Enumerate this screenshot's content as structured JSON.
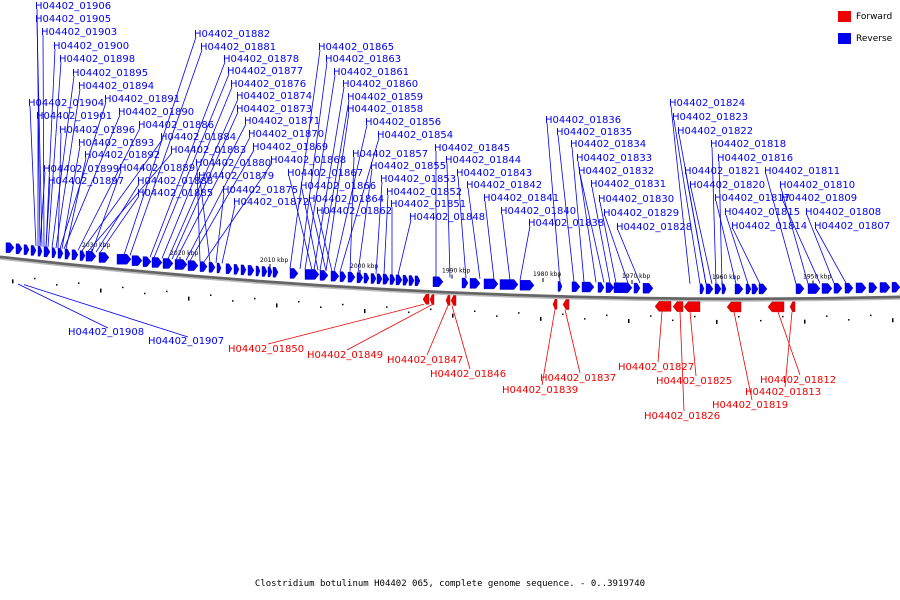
{
  "legend": {
    "forward": {
      "label": "Forward",
      "color": "#ee0000"
    },
    "reverse": {
      "label": "Reverse",
      "color": "#0000ee"
    }
  },
  "caption": "Clostridium botulinum H04402 065, complete genome sequence. - 0..3919740",
  "axis_ticks": [
    "2030 kbp",
    "2020 kbp",
    "2010 kbp",
    "2000 kbp",
    "1990 kbp",
    "1980 kbp",
    "1970 kbp",
    "1960 kbp",
    "1950 kbp"
  ],
  "genes_reverse": [
    "H04402_01906",
    "H04402_01905",
    "H04402_01903",
    "H04402_01900",
    "H04402_01898",
    "H04402_01895",
    "H04402_01894",
    "H04402_01904",
    "H04402_01891",
    "H04402_01901",
    "H04402_01890",
    "H04402_01896",
    "H04402_01893",
    "H04402_01892",
    "H04402_01899",
    "H04402_01897",
    "H04402_01886",
    "H04402_01884",
    "H04402_01883",
    "H04402_01889",
    "H04402_01888",
    "H04402_01885",
    "H04402_01882",
    "H04402_01881",
    "H04402_01878",
    "H04402_01877",
    "H04402_01876",
    "H04402_01874",
    "H04402_01873",
    "H04402_01871",
    "H04402_01870",
    "H04402_01869",
    "H04402_01880",
    "H04402_01868",
    "H04402_01879",
    "H04402_01875",
    "H04402_01872",
    "H04402_01865",
    "H04402_01863",
    "H04402_01861",
    "H04402_01860",
    "H04402_01859",
    "H04402_01858",
    "H04402_01856",
    "H04402_01854",
    "H04402_01857",
    "H04402_01855",
    "H04402_01867",
    "H04402_01866",
    "H04402_01864",
    "H04402_01862",
    "H04402_01853",
    "H04402_01852",
    "H04402_01851",
    "H04402_01848",
    "H04402_01845",
    "H04402_01844",
    "H04402_01843",
    "H04402_01842",
    "H04402_01841",
    "H04402_01840",
    "H04402_01838",
    "H04402_01836",
    "H04402_01835",
    "H04402_01834",
    "H04402_01833",
    "H04402_01832",
    "H04402_01831",
    "H04402_01830",
    "H04402_01829",
    "H04402_01828",
    "H04402_01824",
    "H04402_01823",
    "H04402_01822",
    "H04402_01818",
    "H04402_01816",
    "H04402_01821",
    "H04402_01820",
    "H04402_01817",
    "H04402_01815",
    "H04402_01814",
    "H04402_01811",
    "H04402_01810",
    "H04402_01809",
    "H04402_01808",
    "H04402_01807",
    "H04402_01908",
    "H04402_01907"
  ],
  "genes_forward": [
    "H04402_01850",
    "H04402_01849",
    "H04402_01847",
    "H04402_01846",
    "H04402_01837",
    "H04402_01839",
    "H04402_01827",
    "H04402_01825",
    "H04402_01826",
    "H04402_01819",
    "H04402_01812",
    "H04402_01813"
  ]
}
